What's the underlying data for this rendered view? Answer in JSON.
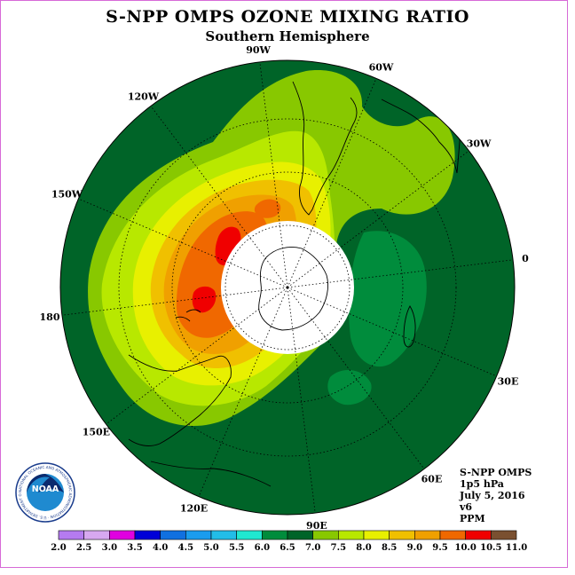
{
  "title": "S-NPP OMPS OZONE MIXING RATIO",
  "subtitle": "Southern Hemisphere",
  "longitude_labels": [
    "90W",
    "60W",
    "30W",
    "0",
    "30E",
    "60E",
    "90E",
    "120E",
    "150E",
    "180",
    "150W",
    "120W"
  ],
  "info": {
    "instrument": "S-NPP OMPS",
    "pressure": "1p5 hPa",
    "date": "July 5, 2016",
    "version": "v6",
    "units": "PPM"
  },
  "logo": {
    "text": "NOAA",
    "ring_text": "NATIONAL OCEANIC AND ATMOSPHERIC ADMINISTRATION · U.S. DEPARTMENT OF COMMERCE"
  },
  "colorbar": {
    "ticks": [
      "2.0",
      "2.5",
      "3.0",
      "3.5",
      "4.0",
      "4.5",
      "5.0",
      "5.5",
      "6.0",
      "6.5",
      "7.0",
      "7.5",
      "8.0",
      "8.5",
      "9.0",
      "9.5",
      "10.0",
      "10.5",
      "11.0"
    ],
    "colors": [
      "#b57bf0",
      "#d7a8f0",
      "#e000e0",
      "#0000d8",
      "#1070e0",
      "#1a9cee",
      "#22bde8",
      "#20e8d0",
      "#008c3c",
      "#006428",
      "#88c800",
      "#b8e800",
      "#e8f000",
      "#f0c000",
      "#f0a000",
      "#f06800",
      "#f00000",
      "#7a5030"
    ]
  }
}
